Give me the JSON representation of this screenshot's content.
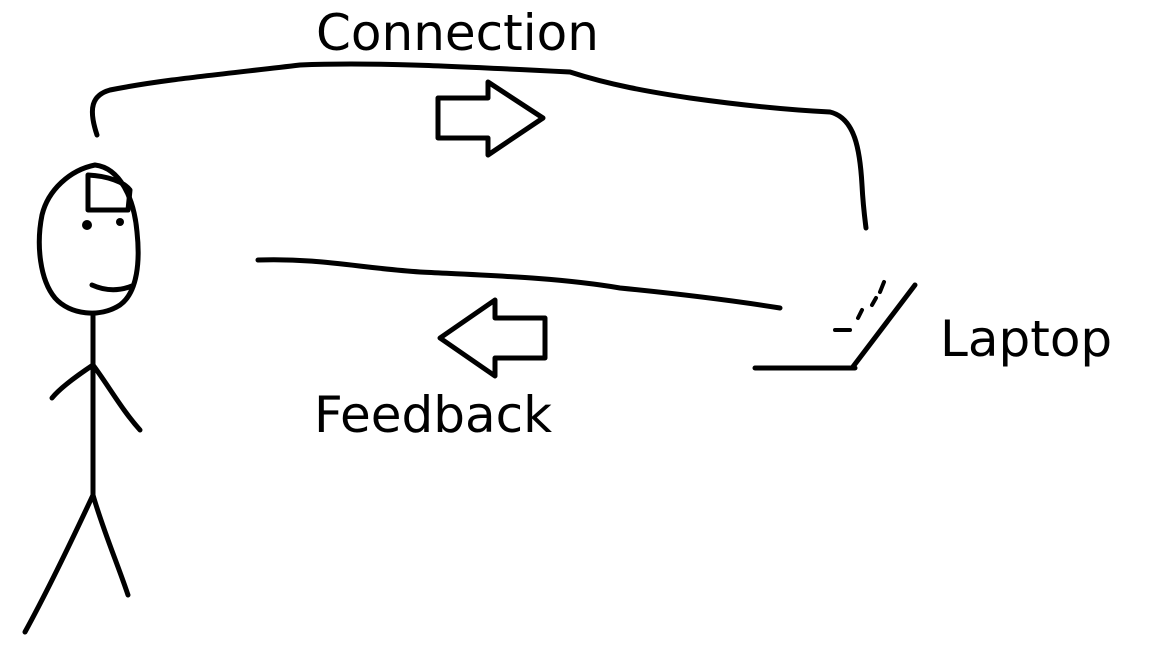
{
  "labels": {
    "connection": "Connection",
    "feedback": "Feedback",
    "laptop": "Laptop"
  },
  "colors": {
    "ink": "#000000",
    "background": "#ffffff"
  }
}
